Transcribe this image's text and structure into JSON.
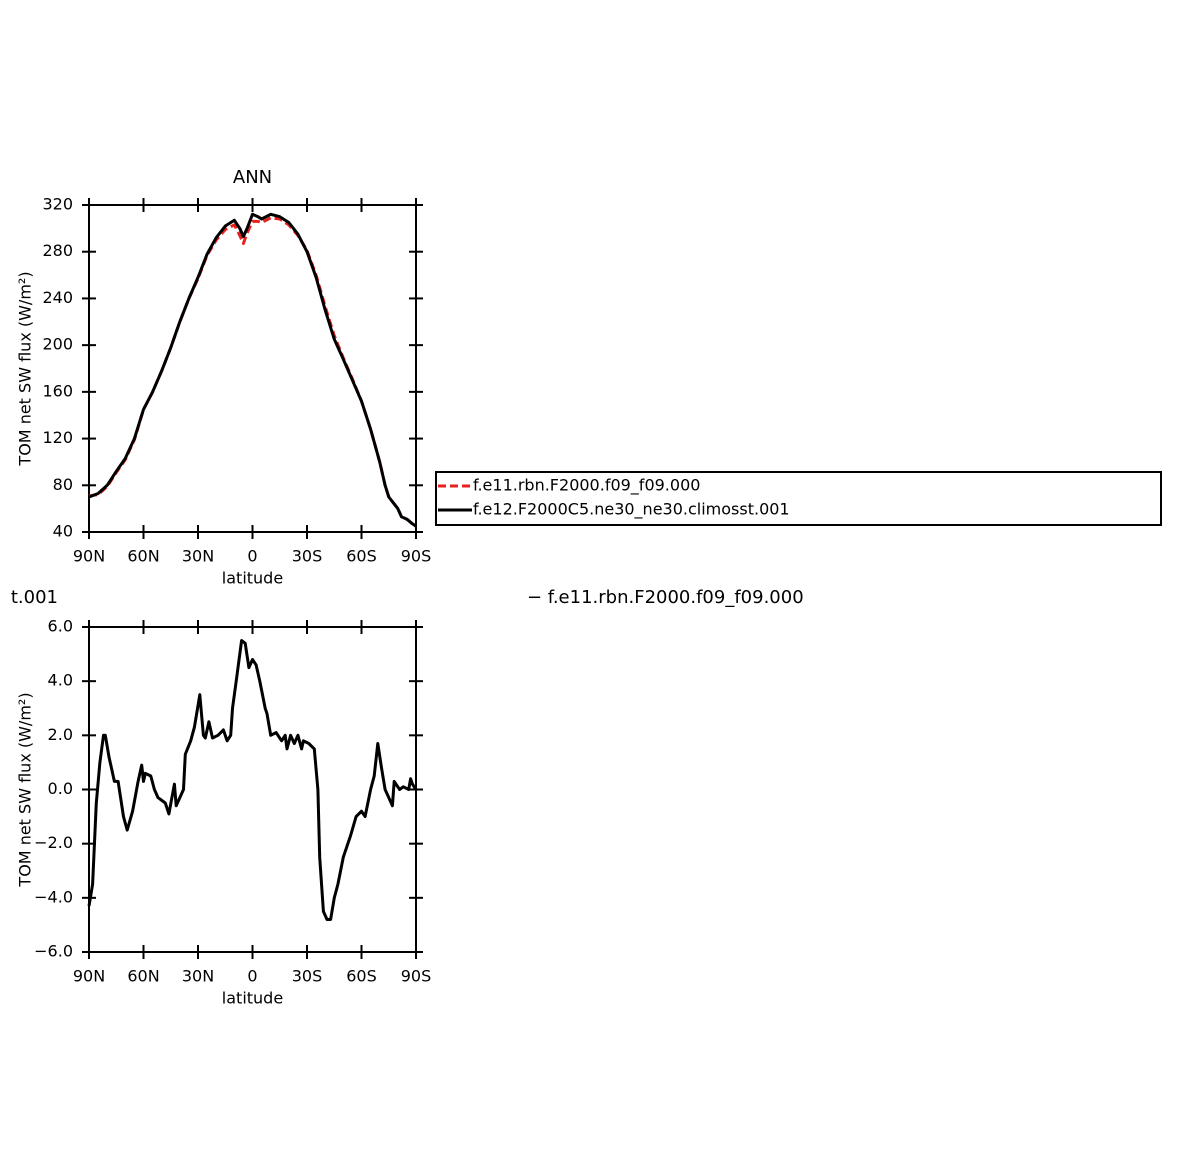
{
  "chart_data": [
    {
      "type": "line",
      "title": "ANN",
      "xlabel": "latitude",
      "ylabel": "TOM net SW flux (W/m²)",
      "x": [
        90,
        85,
        80,
        75,
        70,
        65,
        60,
        55,
        50,
        45,
        40,
        35,
        30,
        25,
        20,
        15,
        10,
        7,
        5,
        3,
        0,
        -3,
        -5,
        -10,
        -15,
        -20,
        -25,
        -30,
        -35,
        -40,
        -45,
        -50,
        -55,
        -60,
        -65,
        -70,
        -73,
        -75,
        -80,
        -82,
        -85,
        -88,
        -90
      ],
      "series": [
        {
          "name": "f.e11.rbn.F2000.f09_f09.000",
          "color": "#e8201e",
          "linestyle": "dashed",
          "values": [
            71,
            72,
            79,
            91,
            102,
            119,
            145,
            160,
            178,
            198,
            220,
            240,
            257,
            277,
            290,
            299,
            303,
            294,
            287,
            296,
            306,
            306,
            305,
            309,
            308,
            303,
            294,
            281,
            260,
            233,
            208,
            189,
            171,
            152,
            128,
            100,
            80,
            70,
            60,
            53,
            51,
            47,
            45
          ]
        },
        {
          "name": "f.e12.F2000C5.ne30_ne30.climosst.001",
          "color": "#000000",
          "linestyle": "solid",
          "values": [
            70,
            73,
            80,
            92,
            103,
            120,
            145,
            160,
            178,
            198,
            220,
            240,
            258,
            278,
            292,
            302,
            307,
            300,
            293,
            300,
            312,
            310,
            308,
            312,
            310,
            305,
            295,
            280,
            258,
            230,
            205,
            188,
            170,
            152,
            128,
            100,
            80,
            70,
            60,
            53,
            51,
            47,
            45
          ]
        }
      ],
      "xlim": [
        90,
        -90
      ],
      "xticks": [
        {
          "value": 90,
          "label": "90N"
        },
        {
          "value": 60,
          "label": "60N"
        },
        {
          "value": 30,
          "label": "30N"
        },
        0,
        {
          "value": -30,
          "label": "30S"
        },
        {
          "value": -60,
          "label": "60S"
        },
        {
          "value": -90,
          "label": "90S"
        }
      ],
      "ylim": [
        40,
        320
      ],
      "yticks": [
        40,
        80,
        120,
        160,
        200,
        240,
        280,
        320
      ],
      "legend": "right"
    },
    {
      "type": "line",
      "title_parts": [
        "t.001",
        "− f.e11.rbn.F2000.f09_f09.000"
      ],
      "xlabel": "latitude",
      "ylabel": "TOM net SW flux (W/m²)",
      "x": [
        90,
        88,
        86,
        84,
        82,
        81,
        79,
        78,
        76,
        74,
        71,
        69,
        66,
        63,
        61,
        60,
        59,
        56,
        54,
        52,
        48,
        46,
        43,
        42,
        38,
        37,
        34,
        32,
        29,
        27,
        26,
        24,
        22,
        19,
        16,
        14,
        12,
        11,
        9,
        6,
        4,
        2,
        0,
        -2,
        -4,
        -7,
        -8,
        -10,
        -13,
        -16,
        -18,
        -19,
        -21,
        -23,
        -25,
        -27,
        -28,
        -31,
        -34,
        -36,
        -37,
        -39,
        -41,
        -43,
        -45,
        -47,
        -50,
        -54,
        -57,
        -60,
        -62,
        -65,
        -67,
        -69,
        -71,
        -73,
        -75,
        -77,
        -78,
        -81,
        -83,
        -86,
        -87,
        -88,
        -90
      ],
      "values": [
        -4.3,
        -3.5,
        -0.5,
        1.0,
        2.0,
        2.0,
        1.2,
        0.9,
        0.3,
        0.3,
        -1.0,
        -1.5,
        -0.8,
        0.3,
        0.9,
        0.3,
        0.6,
        0.5,
        0.0,
        -0.3,
        -0.5,
        -0.9,
        0.2,
        -0.6,
        0.0,
        1.3,
        1.8,
        2.3,
        3.5,
        2.0,
        1.9,
        2.5,
        1.9,
        2.0,
        2.2,
        1.8,
        2.0,
        3.0,
        4.0,
        5.5,
        5.4,
        4.5,
        4.8,
        4.6,
        4.0,
        3.0,
        2.8,
        2.0,
        2.1,
        1.8,
        2.0,
        1.5,
        2.0,
        1.7,
        2.0,
        1.5,
        1.8,
        1.7,
        1.5,
        0.0,
        -2.5,
        -4.5,
        -4.8,
        -4.8,
        -4.0,
        -3.5,
        -2.5,
        -1.7,
        -1.0,
        -0.8,
        -1.0,
        0.0,
        0.5,
        1.7,
        0.8,
        0.0,
        -0.3,
        -0.6,
        0.3,
        0.0,
        0.1,
        0.0,
        0.4,
        0.2,
        0.0
      ],
      "color": "#000000",
      "linestyle": "solid",
      "xlim": [
        90,
        -90
      ],
      "xticks": [
        {
          "value": 90,
          "label": "90N"
        },
        {
          "value": 60,
          "label": "60N"
        },
        {
          "value": 30,
          "label": "30N"
        },
        0,
        {
          "value": -30,
          "label": "30S"
        },
        {
          "value": -60,
          "label": "60S"
        },
        {
          "value": -90,
          "label": "90S"
        }
      ],
      "ylim": [
        -6,
        6
      ],
      "yticks": [
        {
          "value": -6,
          "label": "−6.0"
        },
        {
          "value": -4,
          "label": "−4.0"
        },
        {
          "value": -2,
          "label": "−2.0"
        },
        {
          "value": 0,
          "label": "0.0"
        },
        {
          "value": 2,
          "label": "2.0"
        },
        {
          "value": 4,
          "label": "4.0"
        },
        {
          "value": 6,
          "label": "6.0"
        }
      ]
    }
  ]
}
